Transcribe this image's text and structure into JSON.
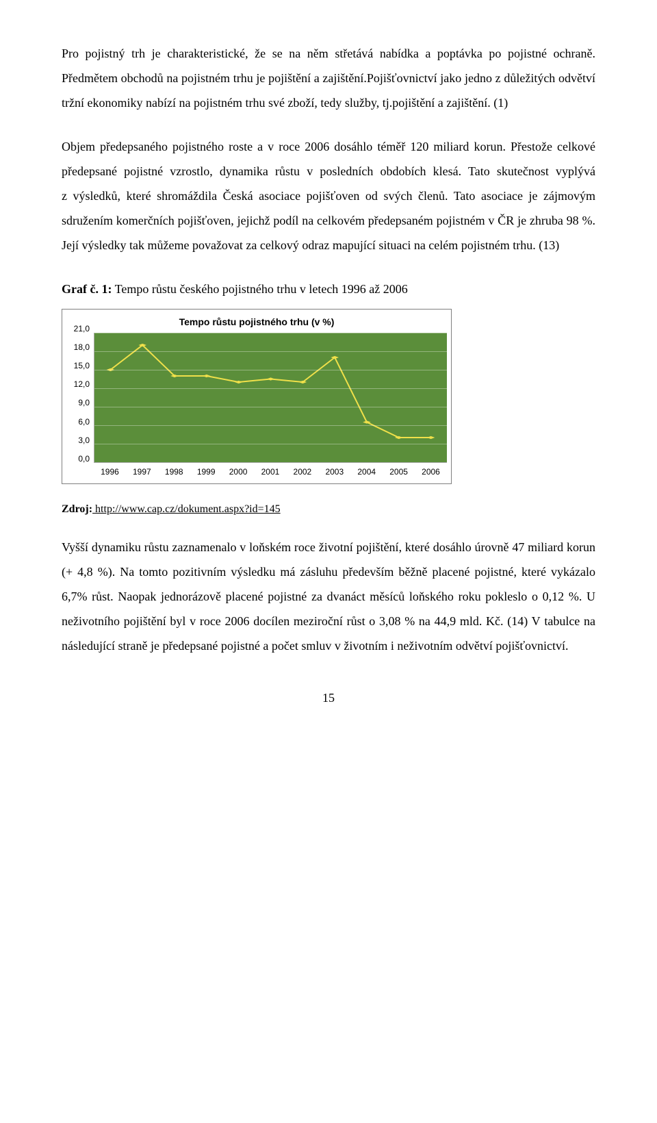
{
  "paragraphs": {
    "p1": "Pro pojistný trh je charakteristické, že se na něm střetává nabídka a poptávka po pojistné ochraně. Předmětem obchodů na pojistném trhu je pojištění a zajištění.Pojišťovnictví jako jedno z důležitých odvětví tržní ekonomiky nabízí na pojistném trhu své zboží, tedy služby, tj.pojištění a zajištění. (1)",
    "p2": "Objem předepsaného pojistného roste a v roce 2006 dosáhlo téměř 120 miliard korun. Přestože celkové předepsané pojistné vzrostlo, dynamika růstu v posledních obdobích klesá. Tato skutečnost vyplývá z výsledků, které shromáždila Česká asociace pojišťoven od svých členů. Tato asociace je zájmovým sdružením komerčních pojišťoven, jejichž podíl na celkovém předepsaném pojistném v ČR je zhruba 98 %. Její výsledky tak můžeme považovat za celkový odraz mapující situaci na celém pojistném trhu. (13)",
    "p3": "Vyšší dynamiku růstu zaznamenalo v loňském roce životní pojištění, které dosáhlo úrovně 47 miliard korun (+ 4,8 %). Na tomto pozitivním výsledku má zásluhu především běžně placené pojistné, které vykázalo 6,7% růst. Naopak jednorázově placené pojistné za dvanáct měsíců loňského roku pokleslo o 0,12 %. U neživotního pojištění byl v roce 2006 docílen meziroční růst o 3,08 % na 44,9 mld. Kč. (14) V tabulce na následující straně je předepsané pojistné a počet smluv v životním i neživotním odvětví pojišťovnictví."
  },
  "graph_label": {
    "prefix_bold": "Graf č. 1:",
    "rest": " Tempo růstu českého  pojistného trhu v letech 1996 až 2006"
  },
  "chart": {
    "type": "line",
    "title": "Tempo růstu pojistného trhu (v %)",
    "background_color": "#5b8e3a",
    "grid_color": "rgba(255,255,255,0.35)",
    "line_color": "#f0e04a",
    "marker_color": "#f0e04a",
    "marker_size": 5,
    "line_width": 2,
    "ylim": [
      0,
      21
    ],
    "ytick_step": 3,
    "y_decimals": 1,
    "x_labels": [
      "1996",
      "1997",
      "1998",
      "1999",
      "2000",
      "2001",
      "2002",
      "2003",
      "2004",
      "2005",
      "2006"
    ],
    "values": [
      15.0,
      19.0,
      14.0,
      14.0,
      13.0,
      13.5,
      13.0,
      17.0,
      6.5,
      4.0,
      4.0
    ]
  },
  "source": {
    "label_bold": "Zdroj:",
    "rest_link": " http://www.cap.cz/dokument.aspx?id=145"
  },
  "page_number": "15"
}
